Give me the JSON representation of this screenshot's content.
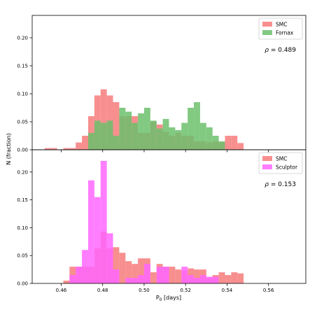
{
  "figure": {
    "ylabel": "N (fraction)",
    "xlabel_main": "P",
    "xlabel_sub": "0",
    "xlabel_unit": " [days]"
  },
  "chart_data": [
    {
      "type": "histogram",
      "xlim": [
        0.446,
        0.578
      ],
      "ylim": [
        0,
        0.24
      ],
      "yticks": [
        0.0,
        0.05,
        0.1,
        0.15,
        0.2
      ],
      "ytick_labels": [
        "0.00",
        "0.05",
        "0.10",
        "0.15",
        "0.20"
      ],
      "x_tick_labels_shown": false,
      "legend_position": "top-right",
      "annotation": {
        "symbol": "ρ",
        "text": " = 0.489"
      },
      "bin_start": 0.452,
      "bin_width": 0.003,
      "series": [
        {
          "name": "SMC",
          "color": "#f77b7b",
          "values": [
            0.003,
            0.003,
            0,
            0.003,
            0.003,
            0.013,
            0.025,
            0.06,
            0.097,
            0.108,
            0.097,
            0.085,
            0.06,
            0.06,
            0.06,
            0.03,
            0.03,
            0.05,
            0.045,
            0.032,
            0.025,
            0.03,
            0.025,
            0.025,
            0.015,
            0.015,
            0.013,
            0.015,
            0.013,
            0.025,
            0.025,
            0.012,
            0
          ]
        },
        {
          "name": "Fornax",
          "color": "#6cbf6c",
          "values": [
            0,
            0,
            0,
            0,
            0,
            0,
            0,
            0.03,
            0.052,
            0.048,
            0.052,
            0.025,
            0.075,
            0.068,
            0.048,
            0.065,
            0.075,
            0.052,
            0.038,
            0.055,
            0.04,
            0.035,
            0.048,
            0.075,
            0.085,
            0.048,
            0.04,
            0.025,
            0.015,
            0,
            0,
            0,
            0
          ]
        }
      ]
    },
    {
      "type": "histogram",
      "xlim": [
        0.446,
        0.578
      ],
      "ylim": [
        0,
        0.24
      ],
      "yticks": [
        0.0,
        0.05,
        0.1,
        0.15,
        0.2
      ],
      "ytick_labels": [
        "0.00",
        "0.05",
        "0.10",
        "0.15",
        "0.20"
      ],
      "xticks": [
        0.46,
        0.48,
        0.5,
        0.52,
        0.54,
        0.56
      ],
      "xtick_labels": [
        "0.46",
        "0.48",
        "0.50",
        "0.52",
        "0.54",
        "0.56"
      ],
      "legend_position": "top-right",
      "annotation": {
        "symbol": "ρ",
        "text": " = 0.153"
      },
      "bin_start": 0.452,
      "bin_width": 0.003,
      "series": [
        {
          "name": "SMC",
          "color": "#f77b7b",
          "values": [
            0,
            0,
            0,
            0.005,
            0.03,
            0.03,
            0.03,
            0.03,
            0.063,
            0.093,
            0.063,
            0.065,
            0.055,
            0.04,
            0.035,
            0.045,
            0.045,
            0.02,
            0.035,
            0.03,
            0.03,
            0.025,
            0.023,
            0.027,
            0.025,
            0.025,
            0.01,
            0.015,
            0.02,
            0.015,
            0.02,
            0.018,
            0
          ]
        },
        {
          "name": "Sculptor",
          "color": "#ff66ff",
          "values": [
            0,
            0,
            0,
            0,
            0.015,
            0.03,
            0.06,
            0.185,
            0.155,
            0.22,
            0.09,
            0.025,
            0,
            0.01,
            0.01,
            0.015,
            0.035,
            0,
            0.03,
            0.03,
            0,
            0,
            0.03,
            0.015,
            0.01,
            0.015,
            0.012,
            0.012,
            0,
            0,
            0,
            0,
            0
          ]
        }
      ]
    }
  ]
}
